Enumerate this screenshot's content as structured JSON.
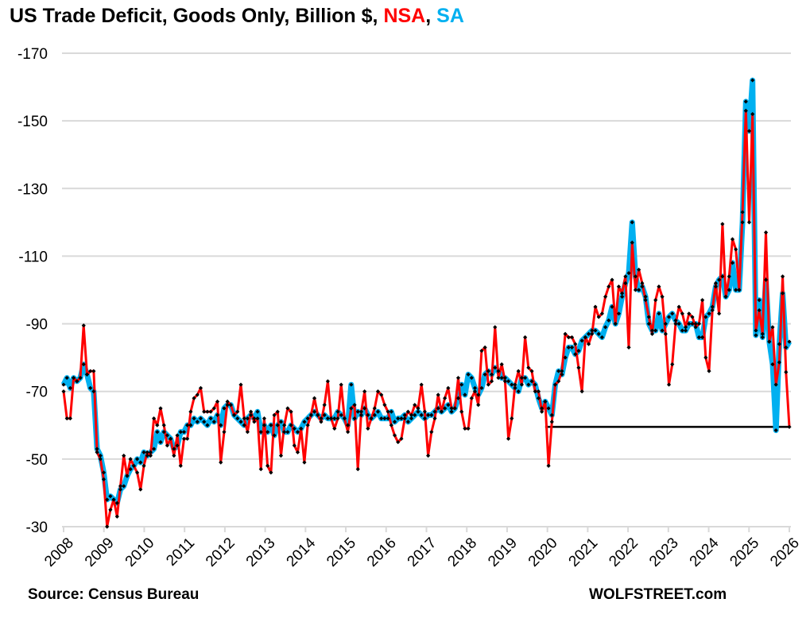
{
  "chart_data": {
    "type": "line",
    "title": {
      "main": "US Trade Deficit, Goods Only, Billion $, ",
      "nsa": "NSA",
      "sep": ", ",
      "sa": "SA"
    },
    "xlabel": "",
    "ylabel": "",
    "start_month": "2008-01",
    "end_month": "2026-02",
    "x_tick_labels": [
      "2008",
      "2009",
      "2010",
      "2011",
      "2012",
      "2013",
      "2014",
      "2015",
      "2016",
      "2017",
      "2018",
      "2019",
      "2020",
      "2021",
      "2022",
      "2023",
      "2024",
      "2025",
      "2026"
    ],
    "y_tick_labels": [
      "-170",
      "-150",
      "-130",
      "-110",
      "-90",
      "-70",
      "-50",
      "-30"
    ],
    "ylim": [
      -30,
      -170
    ],
    "grid": "horizontal",
    "legend": "in title",
    "reference_line": {
      "y": -59.5,
      "from": "2020-01",
      "to": "2026-02",
      "color": "#000000"
    },
    "series": [
      {
        "name": "SA",
        "color": "#00b0f0",
        "values": [
          -72,
          -74,
          -71,
          -74,
          -73,
          -74,
          -78,
          -75,
          -71,
          -70,
          -53,
          -51,
          -46,
          -38,
          -39,
          -38,
          -37,
          -41,
          -42,
          -45,
          -47,
          -48,
          -50,
          -49,
          -52,
          -51,
          -52,
          -53,
          -58,
          -55,
          -58,
          -57,
          -56,
          -53,
          -54,
          -58,
          -58,
          -60,
          -60,
          -62,
          -61,
          -62,
          -61,
          -60,
          -62,
          -61,
          -63,
          -60,
          -65,
          -66,
          -66,
          -63,
          -62,
          -61,
          -60,
          -62,
          -63,
          -62,
          -64,
          -58,
          -60,
          -58,
          -60,
          -57,
          -60,
          -61,
          -58,
          -58,
          -60,
          -59,
          -58,
          -59,
          -61,
          -62,
          -63,
          -64,
          -63,
          -62,
          -63,
          -62,
          -62,
          -62,
          -64,
          -63,
          -62,
          -60,
          -72,
          -62,
          -64,
          -63,
          -65,
          -63,
          -62,
          -63,
          -64,
          -62,
          -62,
          -62,
          -64,
          -61,
          -62,
          -62,
          -63,
          -61,
          -62,
          -63,
          -64,
          -63,
          -62,
          -63,
          -63,
          -64,
          -65,
          -64,
          -65,
          -66,
          -64,
          -65,
          -68,
          -72,
          -69,
          -75,
          -74,
          -71,
          -69,
          -71,
          -75,
          -76,
          -75,
          -77,
          -76,
          -74,
          -74,
          -73,
          -72,
          -71,
          -70,
          -74,
          -74,
          -72,
          -73,
          -72,
          -68,
          -65,
          -67,
          -65,
          -63,
          -72,
          -76,
          -75,
          -80,
          -83,
          -83,
          -81,
          -82,
          -85,
          -86,
          -87,
          -88,
          -88,
          -87,
          -86,
          -89,
          -91,
          -95,
          -90,
          -93,
          -98,
          -102,
          -105,
          -120,
          -104,
          -100,
          -101,
          -98,
          -90,
          -88,
          -88,
          -93,
          -88,
          -90,
          -92,
          -93,
          -91,
          -90,
          -88,
          -88,
          -90,
          -90,
          -90,
          -86,
          -86,
          -92,
          -93,
          -95,
          -101,
          -103,
          -104,
          -98,
          -100,
          -108,
          -100,
          -100,
          -120,
          -155.7,
          -147,
          -162,
          -86.6,
          -97,
          -86,
          -103,
          -84.7,
          -78,
          -58.5,
          -84,
          -99,
          -83,
          -84.7
        ]
      },
      {
        "name": "NSA",
        "color": "#ff0000",
        "values": [
          -70,
          -62,
          -62,
          -74,
          -73,
          -74,
          -89.5,
          -75,
          -76,
          -76,
          -52,
          -50,
          -44,
          -30,
          -35,
          -38,
          -33,
          -42,
          -51,
          -45,
          -50,
          -48,
          -46,
          -41,
          -48,
          -52,
          -51,
          -62,
          -60,
          -65,
          -60,
          -54,
          -56,
          -51,
          -57,
          -48,
          -56,
          -56,
          -64,
          -68,
          -69,
          -71,
          -64,
          -64,
          -64,
          -65,
          -67,
          -49,
          -58,
          -67,
          -66,
          -63,
          -64,
          -72,
          -62,
          -58,
          -64,
          -61,
          -62,
          -47,
          -62,
          -48,
          -46,
          -63,
          -64,
          -51,
          -60,
          -65,
          -64,
          -54,
          -52,
          -59,
          -49,
          -60,
          -63,
          -68,
          -63,
          -61,
          -66,
          -73,
          -62,
          -59,
          -62,
          -72,
          -62,
          -58,
          -65,
          -66,
          -47,
          -64,
          -70,
          -59,
          -62,
          -65,
          -70,
          -69,
          -66,
          -64,
          -60,
          -57,
          -55,
          -56,
          -62,
          -64,
          -63,
          -66,
          -65,
          -72,
          -64,
          -51,
          -58,
          -62,
          -69,
          -64,
          -68,
          -71,
          -65,
          -65,
          -74,
          -64,
          -59,
          -59,
          -68,
          -70,
          -66,
          -82,
          -83,
          -72,
          -73,
          -89,
          -74,
          -78,
          -73,
          -56,
          -62,
          -72,
          -76,
          -72,
          -86,
          -77,
          -76,
          -70,
          -70,
          -64,
          -67,
          -48,
          -61,
          -72,
          -73,
          -76,
          -87,
          -86,
          -86,
          -84,
          -77,
          -70,
          -86,
          -84,
          -87,
          -95,
          -92,
          -93,
          -98,
          -101,
          -103,
          -90,
          -101,
          -99,
          -104,
          -83,
          -114,
          -100,
          -106,
          -102,
          -97,
          -92,
          -87,
          -97,
          -101,
          -98,
          -87,
          -72,
          -78,
          -90,
          -95,
          -93,
          -89,
          -93,
          -92,
          -89,
          -90,
          -97,
          -80,
          -76,
          -94,
          -102,
          -93,
          -119.5,
          -98,
          -104,
          -115,
          -112,
          -100,
          -123,
          -153,
          -120,
          -152,
          -88,
          -94,
          -87,
          -117,
          -84.7,
          -89,
          -72,
          -78.6,
          -104,
          -75.7,
          -59.5
        ]
      }
    ]
  },
  "footer": {
    "source": "Source: Census Bureau",
    "brand": "WOLFSTREET.com"
  }
}
